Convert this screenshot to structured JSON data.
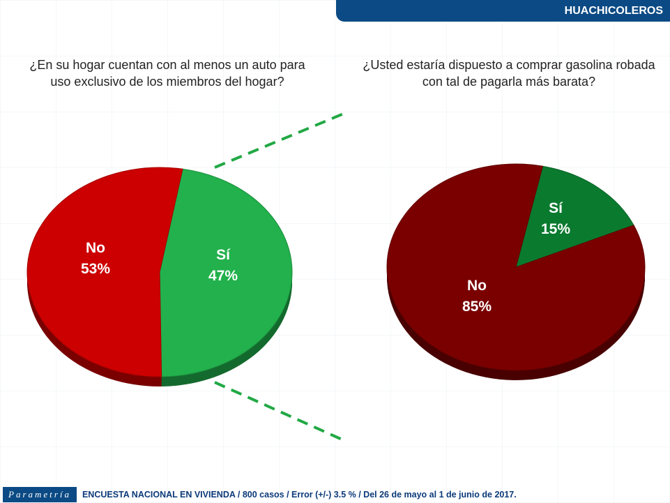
{
  "header": {
    "title": "HUACHICOLEROS"
  },
  "chart_data": [
    {
      "type": "pie",
      "title": "¿En su hogar cuentan con al menos un auto para uso exclusivo de los miembros del hogar?",
      "slices": [
        {
          "label": "Sí",
          "value": 47,
          "display": "47%",
          "color": "#22b14c"
        },
        {
          "label": "No",
          "value": 53,
          "display": "53%",
          "color": "#cc0000"
        }
      ]
    },
    {
      "type": "pie",
      "title": "¿Usted estaría dispuesto a comprar gasolina robada con tal de pagarla más barata?",
      "slices": [
        {
          "label": "Sí",
          "value": 15,
          "display": "15%",
          "color": "#0a7a2f"
        },
        {
          "label": "No",
          "value": 85,
          "display": "85%",
          "color": "#7a0000"
        }
      ]
    }
  ],
  "footer": {
    "logo": "Parametría",
    "text": "ENCUESTA NACIONAL EN VIVIENDA / 800 casos / Error (+/-) 3.5 % / Del 26 de mayo al 1 de junio de 2017."
  }
}
